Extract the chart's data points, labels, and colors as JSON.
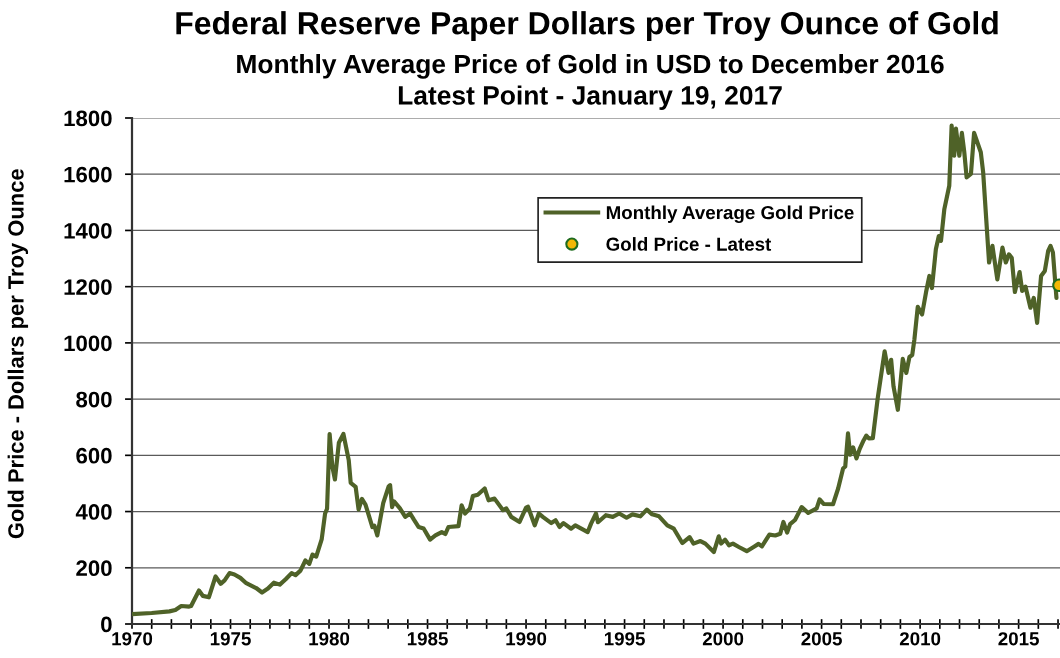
{
  "chart_data": {
    "type": "line",
    "title": "Federal Reserve Paper Dollars per Troy Ounce of Gold",
    "subtitle": "Monthly Average Price of Gold in USD to December 2016\nLatest Point - January 19, 2017",
    "ylabel": "Gold Price - Dollars per Troy Ounce",
    "xlim": [
      1970,
      2017.1
    ],
    "xticks": [
      1970,
      {
        "value": 1971,
        "label": null
      },
      {
        "value": 1972,
        "label": null
      },
      {
        "value": 1973,
        "label": null
      },
      {
        "value": 1974,
        "label": null
      },
      1975,
      {
        "value": 1976,
        "label": null
      },
      {
        "value": 1977,
        "label": null
      },
      {
        "value": 1978,
        "label": null
      },
      {
        "value": 1979,
        "label": null
      },
      1980,
      {
        "value": 1981,
        "label": null
      },
      {
        "value": 1982,
        "label": null
      },
      {
        "value": 1983,
        "label": null
      },
      {
        "value": 1984,
        "label": null
      },
      1985,
      {
        "value": 1986,
        "label": null
      },
      {
        "value": 1987,
        "label": null
      },
      {
        "value": 1988,
        "label": null
      },
      {
        "value": 1989,
        "label": null
      },
      1990,
      {
        "value": 1991,
        "label": null
      },
      {
        "value": 1992,
        "label": null
      },
      {
        "value": 1993,
        "label": null
      },
      {
        "value": 1994,
        "label": null
      },
      1995,
      {
        "value": 1996,
        "label": null
      },
      {
        "value": 1997,
        "label": null
      },
      {
        "value": 1998,
        "label": null
      },
      {
        "value": 1999,
        "label": null
      },
      2000,
      {
        "value": 2001,
        "label": null
      },
      {
        "value": 2002,
        "label": null
      },
      {
        "value": 2003,
        "label": null
      },
      {
        "value": 2004,
        "label": null
      },
      2005,
      {
        "value": 2006,
        "label": null
      },
      {
        "value": 2007,
        "label": null
      },
      {
        "value": 2008,
        "label": null
      },
      {
        "value": 2009,
        "label": null
      },
      2010,
      {
        "value": 2011,
        "label": null
      },
      {
        "value": 2012,
        "label": null
      },
      {
        "value": 2013,
        "label": null
      },
      {
        "value": 2014,
        "label": null
      },
      2015,
      {
        "value": 2016,
        "label": null
      },
      {
        "value": 2017,
        "label": null
      }
    ],
    "ylim": [
      0,
      1800
    ],
    "yticks": [
      0,
      200,
      400,
      600,
      800,
      1000,
      1200,
      1400,
      1600,
      1800
    ],
    "grid": "y",
    "legend": "top",
    "series": [
      {
        "name": "Monthly Average Gold Price",
        "color": "#4f6228",
        "line_style": "solid",
        "x": [
          1970.0,
          1971.0,
          1971.9,
          1972.2,
          1972.5,
          1972.9,
          1973.0,
          1973.4,
          1973.6,
          1973.9,
          1974.24,
          1974.5,
          1974.7,
          1974.95,
          1975.2,
          1975.5,
          1975.8,
          1976.3,
          1976.6,
          1976.9,
          1977.2,
          1977.5,
          1977.8,
          1978.1,
          1978.3,
          1978.55,
          1978.8,
          1979.0,
          1979.16,
          1979.35,
          1979.63,
          1979.8,
          1979.9,
          1980.03,
          1980.17,
          1980.3,
          1980.5,
          1980.73,
          1981.0,
          1981.1,
          1981.35,
          1981.5,
          1981.67,
          1981.85,
          1982.2,
          1982.3,
          1982.45,
          1982.75,
          1983.03,
          1983.1,
          1983.2,
          1983.3,
          1983.6,
          1983.87,
          1984.12,
          1984.3,
          1984.55,
          1984.8,
          1985.13,
          1985.4,
          1985.72,
          1985.9,
          1986.06,
          1986.57,
          1986.73,
          1986.9,
          1987.15,
          1987.3,
          1987.55,
          1987.9,
          1988.1,
          1988.4,
          1988.83,
          1989.0,
          1989.25,
          1989.67,
          1990.0,
          1990.1,
          1990.44,
          1990.65,
          1990.85,
          1991.28,
          1991.5,
          1991.7,
          1991.9,
          1992.29,
          1992.5,
          1993.13,
          1993.3,
          1993.55,
          1993.65,
          1994.05,
          1994.4,
          1994.73,
          1995.1,
          1995.4,
          1995.8,
          1996.13,
          1996.4,
          1996.75,
          1997.17,
          1997.5,
          1997.93,
          1998.3,
          1998.5,
          1998.85,
          1999.1,
          1999.53,
          1999.78,
          1999.9,
          2000.1,
          2000.3,
          2000.5,
          2000.8,
          2001.2,
          2001.55,
          2001.8,
          2001.97,
          2002.35,
          2002.65,
          2002.9,
          2003.06,
          2003.25,
          2003.4,
          2003.65,
          2003.99,
          2004.32,
          2004.75,
          2004.9,
          2005.1,
          2005.58,
          2005.84,
          2006.09,
          2006.2,
          2006.34,
          2006.45,
          2006.6,
          2006.77,
          2006.93,
          2007.13,
          2007.27,
          2007.4,
          2007.6,
          2007.85,
          2008.2,
          2008.4,
          2008.53,
          2008.65,
          2008.87,
          2009.12,
          2009.3,
          2009.46,
          2009.6,
          2009.71,
          2009.88,
          2010.1,
          2010.3,
          2010.47,
          2010.6,
          2010.8,
          2010.95,
          2011.06,
          2011.23,
          2011.48,
          2011.6,
          2011.73,
          2011.82,
          2011.99,
          2012.12,
          2012.24,
          2012.36,
          2012.58,
          2012.74,
          2013.08,
          2013.2,
          2013.5,
          2013.67,
          2013.92,
          2014.18,
          2014.35,
          2014.51,
          2014.65,
          2014.81,
          2015.05,
          2015.18,
          2015.35,
          2015.6,
          2015.77,
          2015.94,
          2016.14,
          2016.33,
          2016.5,
          2016.62,
          2016.74,
          2016.92
        ],
        "values": [
          35,
          39,
          45,
          50,
          64,
          62,
          64,
          119,
          100,
          95,
          169,
          143,
          155,
          181,
          176,
          164,
          145,
          128,
          112,
          126,
          147,
          140,
          159,
          181,
          174,
          190,
          226,
          214,
          247,
          240,
          302,
          393,
          410,
          676,
          559,
          514,
          645,
          676,
          583,
          502,
          488,
          407,
          445,
          425,
          345,
          350,
          315,
          430,
          490,
          494,
          416,
          436,
          411,
          381,
          393,
          372,
          345,
          340,
          300,
          315,
          327,
          320,
          345,
          348,
          422,
          393,
          411,
          455,
          460,
          482,
          440,
          446,
          405,
          411,
          381,
          363,
          414,
          417,
          351,
          393,
          381,
          359,
          369,
          345,
          359,
          339,
          351,
          327,
          357,
          393,
          362,
          387,
          381,
          393,
          378,
          390,
          383,
          407,
          390,
          383,
          351,
          339,
          288,
          309,
          286,
          295,
          286,
          256,
          312,
          286,
          300,
          280,
          286,
          274,
          259,
          274,
          285,
          276,
          318,
          315,
          321,
          363,
          325,
          355,
          370,
          416,
          395,
          411,
          443,
          427,
          426,
          482,
          553,
          560,
          678,
          602,
          628,
          589,
          622,
          653,
          670,
          660,
          661,
          804,
          970,
          893,
          940,
          845,
          762,
          943,
          893,
          950,
          957,
          1012,
          1128,
          1101,
          1180,
          1238,
          1195,
          1333,
          1380,
          1363,
          1476,
          1559,
          1773,
          1666,
          1762,
          1666,
          1747,
          1680,
          1589,
          1601,
          1747,
          1678,
          1607,
          1286,
          1345,
          1226,
          1339,
          1286,
          1315,
          1303,
          1181,
          1252,
          1185,
          1200,
          1125,
          1160,
          1071,
          1238,
          1256,
          1327,
          1345,
          1322,
          1160
        ]
      },
      {
        "name": "Gold Price - Latest",
        "type": "scatter",
        "color": "#f2b705",
        "marker": "circle",
        "x": [
          2017.05
        ],
        "values": [
          1205
        ]
      }
    ]
  }
}
